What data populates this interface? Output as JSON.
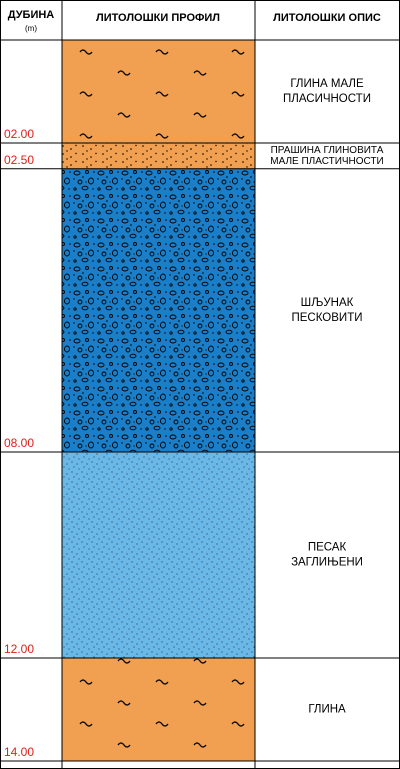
{
  "header": {
    "depth": "ДУБИНА",
    "unit": "(m)",
    "profile": "ЛИТОЛОШКИ ПРОФИЛ",
    "description": "ЛИТОЛОШКИ ОПИС"
  },
  "layers": [
    {
      "depth": "02.00",
      "description": [
        "ГЛИНА МАЛЕ",
        "ПЛАСИЧНОСТИ"
      ]
    },
    {
      "depth": "02.50",
      "description": [
        "ПРАШИНА ГЛИНОВИТА",
        "МАЛЕ ПЛАСТИЧНОСТИ"
      ]
    },
    {
      "depth": "08.00",
      "description": [
        "ШЉУНАК",
        "ПЕСКОВИТИ"
      ]
    },
    {
      "depth": "12.00",
      "description": [
        "ПЕСАК",
        "ЗАГЛИЊЕНИ"
      ]
    },
    {
      "depth": "14.00",
      "description": [
        "ГЛИНА"
      ]
    }
  ]
}
